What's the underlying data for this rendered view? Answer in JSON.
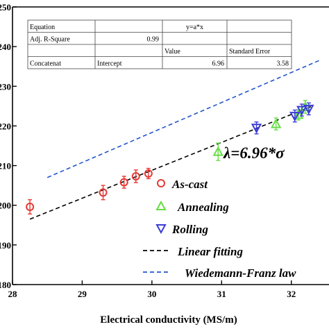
{
  "chart_data": {
    "type": "scatter",
    "xlabel": "Electrical conductivity (MS/m)",
    "ylabel": "",
    "xlim": [
      28,
      32.5
    ],
    "ylim": [
      180,
      250
    ],
    "x_ticks": [
      28,
      29,
      30,
      31,
      32
    ],
    "y_ticks": [
      180,
      190,
      200,
      210,
      220,
      230,
      240,
      250
    ],
    "x_tick_labels": [
      "28",
      "29",
      "30",
      "31",
      "32"
    ],
    "y_tick_labels": [
      "180",
      "190",
      "200",
      "210",
      "220",
      "230",
      "240",
      "250"
    ],
    "grid": false,
    "annotation": "λ=6.96*σ",
    "series": [
      {
        "name": "As-cast",
        "marker": "circle",
        "color": "#e53935",
        "points": [
          {
            "x": 28.25,
            "y": 199.6,
            "err": 1.8
          },
          {
            "x": 29.3,
            "y": 203.2,
            "err": 1.8
          },
          {
            "x": 29.6,
            "y": 205.8,
            "err": 1.5
          },
          {
            "x": 29.77,
            "y": 207.3,
            "err": 1.6
          },
          {
            "x": 29.95,
            "y": 208.0,
            "err": 1.3
          }
        ]
      },
      {
        "name": "Annealing",
        "marker": "triangle-up",
        "color": "#66dd44",
        "points": [
          {
            "x": 30.95,
            "y": 213.5,
            "err": 2.2
          },
          {
            "x": 31.78,
            "y": 220.5,
            "err": 1.5
          },
          {
            "x": 32.1,
            "y": 222.8,
            "err": 1.3
          },
          {
            "x": 32.2,
            "y": 224.8,
            "err": 1.6
          }
        ]
      },
      {
        "name": "Rolling",
        "marker": "triangle-down",
        "color": "#3a3ad8",
        "points": [
          {
            "x": 31.5,
            "y": 219.5,
            "err": 1.5
          },
          {
            "x": 32.05,
            "y": 222.5,
            "err": 1.5
          },
          {
            "x": 32.15,
            "y": 224.0,
            "err": 1.5
          },
          {
            "x": 32.25,
            "y": 224.3,
            "err": 1.5
          }
        ]
      },
      {
        "name": "Linear fitting",
        "style": "dashed",
        "color": "#000000",
        "line": [
          [
            28.25,
            196.5
          ],
          [
            32.3,
            225.0
          ]
        ]
      },
      {
        "name": "Wiedemann-Franz law",
        "style": "dashed",
        "color": "#2255cc",
        "line": [
          [
            28.5,
            207.0
          ],
          [
            32.4,
            236.5
          ]
        ]
      }
    ],
    "table": {
      "rows": [
        [
          "Equation",
          "",
          "y=a*x",
          ""
        ],
        [
          "Adj. R-Square",
          "0.99",
          "",
          ""
        ],
        [
          "",
          "",
          "Value",
          "Standard Error"
        ],
        [
          "Concatenat",
          "Intercept",
          "6.96",
          "3.58"
        ]
      ]
    }
  }
}
